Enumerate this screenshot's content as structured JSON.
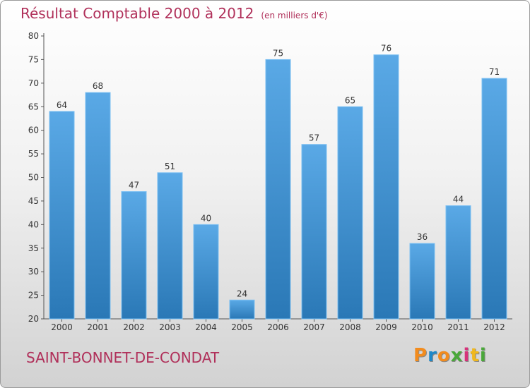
{
  "header": {
    "title": "Résultat Comptable 2000 à 2012",
    "subtitle": "(en milliers d'€)"
  },
  "footer": {
    "commune": "SAINT-BONNET-DE-CONDAT",
    "logo": [
      "P",
      "r",
      "o",
      "x",
      "i",
      "t",
      "i"
    ]
  },
  "colors": {
    "title": "#b0305a",
    "bar_light": "#5aa9e6",
    "bar_dark": "#2a78b6",
    "logo": [
      "#f28c1e",
      "#1e88c8",
      "#f28c1e",
      "#4aa83a",
      "#d6337a",
      "#f0b81e",
      "#4aa83a"
    ]
  },
  "chart_data": {
    "type": "bar",
    "categories": [
      "2000",
      "2001",
      "2002",
      "2003",
      "2004",
      "2005",
      "2006",
      "2007",
      "2008",
      "2009",
      "2010",
      "2011",
      "2012"
    ],
    "values": [
      64,
      68,
      47,
      51,
      40,
      24,
      75,
      57,
      65,
      76,
      36,
      44,
      71
    ],
    "ylim": [
      20,
      80
    ],
    "yticks": [
      20,
      25,
      30,
      35,
      40,
      45,
      50,
      55,
      60,
      65,
      70,
      75,
      80
    ],
    "grid": false,
    "data_labels": true
  }
}
